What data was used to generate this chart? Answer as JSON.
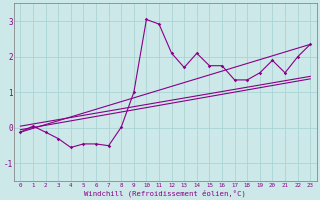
{
  "xlabel": "Windchill (Refroidissement éolien,°C)",
  "background_color": "#cce8e8",
  "grid_color": "#aad4d4",
  "line_color": "#880088",
  "xlim": [
    -0.5,
    23.5
  ],
  "ylim": [
    -1.5,
    3.5
  ],
  "xticks": [
    0,
    1,
    2,
    3,
    4,
    5,
    6,
    7,
    8,
    9,
    10,
    11,
    12,
    13,
    14,
    15,
    16,
    17,
    18,
    19,
    20,
    21,
    22,
    23
  ],
  "yticks": [
    -1,
    0,
    1,
    2,
    3
  ],
  "data_x": [
    0,
    1,
    2,
    3,
    4,
    5,
    6,
    7,
    8,
    9,
    10,
    11,
    12,
    13,
    14,
    15,
    16,
    17,
    18,
    19,
    20,
    21,
    22,
    23
  ],
  "data_y": [
    -0.12,
    0.05,
    -0.12,
    -0.3,
    -0.55,
    -0.45,
    -0.45,
    -0.5,
    0.02,
    1.0,
    3.05,
    2.92,
    2.1,
    1.7,
    2.1,
    1.75,
    1.75,
    1.35,
    1.35,
    1.55,
    1.9,
    1.55,
    2.0,
    2.35
  ],
  "line1_x": [
    0,
    23
  ],
  "line1_y": [
    -0.12,
    2.35
  ],
  "line2_x": [
    0,
    23
  ],
  "line2_y": [
    -0.05,
    1.38
  ],
  "line3_x": [
    0,
    23
  ],
  "line3_y": [
    0.05,
    1.45
  ]
}
